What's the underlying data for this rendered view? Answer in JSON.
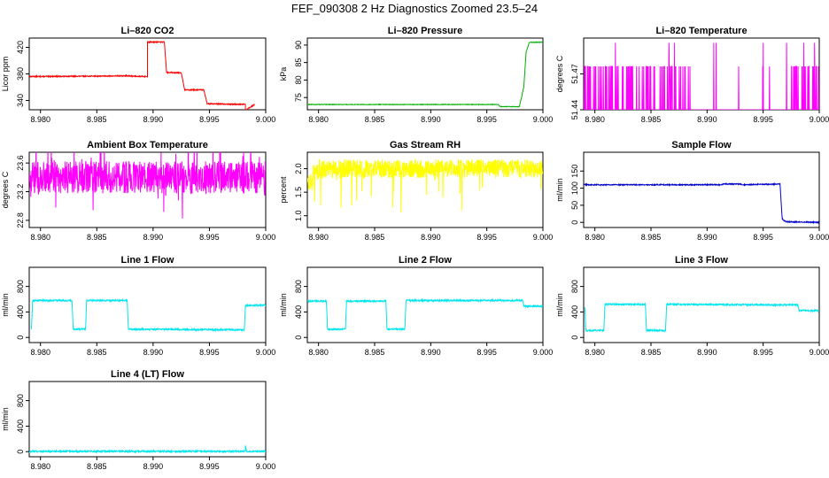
{
  "figure": {
    "title": "FEF_090308  2 Hz Diagnostics Zoomed 23.5–24"
  },
  "chart_data": [
    {
      "type": "line",
      "title": "Li–820 CO2",
      "ylabel": "Licor ppm",
      "color": "#ff0000",
      "xlim": [
        8.979,
        9.0
      ],
      "ylim": [
        326,
        434
      ],
      "xticks": [
        "8.980",
        "8.985",
        "8.990",
        "8.995",
        "9.000"
      ],
      "xtick_values": [
        8.98,
        8.985,
        8.99,
        8.995,
        9.0
      ],
      "yticks": [
        "340",
        "380",
        "420"
      ],
      "ytick_values": [
        340,
        380,
        420
      ],
      "series": [
        {
          "name": "CO2",
          "x": [
            8.979,
            8.9875,
            8.9895,
            8.9895,
            8.991,
            8.9912,
            8.9925,
            8.9928,
            8.9945,
            8.9948,
            8.9982,
            8.9982,
            8.999
          ],
          "y": [
            376,
            377,
            376,
            428,
            428,
            382,
            382,
            356,
            356,
            335,
            334,
            325,
            334
          ]
        }
      ]
    },
    {
      "type": "line",
      "title": "Li–820 Pressure",
      "ylabel": "kPa",
      "color": "#00b000",
      "xlim": [
        8.979,
        9.0
      ],
      "ylim": [
        71.5,
        92
      ],
      "xticks": [
        "8.980",
        "8.985",
        "8.990",
        "8.995",
        "9.000"
      ],
      "xtick_values": [
        8.98,
        8.985,
        8.99,
        8.995,
        9.0
      ],
      "yticks": [
        "75",
        "80",
        "85",
        "90"
      ],
      "ytick_values": [
        75,
        80,
        85,
        90
      ],
      "series": [
        {
          "name": "Pressure",
          "x": [
            8.979,
            8.996,
            8.9962,
            8.9979,
            8.9983,
            8.9985,
            8.9988,
            9.0
          ],
          "y": [
            73.0,
            73.0,
            72.4,
            72.4,
            78,
            88,
            90.8,
            90.8
          ]
        }
      ]
    },
    {
      "type": "line",
      "title": "Li–820 Temperature",
      "ylabel": "degrees C",
      "color": "#ff00ff",
      "xlim": [
        8.979,
        9.0
      ],
      "ylim": [
        51.44,
        51.5
      ],
      "xticks": [
        "8.980",
        "8.985",
        "8.990",
        "8.995",
        "9.000"
      ],
      "xtick_values": [
        8.98,
        8.985,
        8.99,
        8.995,
        9.0
      ],
      "yticks": [
        "51.44",
        "51.47"
      ],
      "ytick_values": [
        51.44,
        51.47
      ],
      "series": [
        {
          "name": "Temperature",
          "x": [
            8.979,
            9.0
          ],
          "y": [
            51.44,
            51.44
          ]
        }
      ]
    },
    {
      "type": "line",
      "title": "Ambient Box Temperature",
      "ylabel": "degrees C",
      "color": "#ff00ff",
      "xlim": [
        8.979,
        9.0
      ],
      "ylim": [
        22.7,
        23.75
      ],
      "xticks": [
        "8.980",
        "8.985",
        "8.990",
        "8.995",
        "9.000"
      ],
      "xtick_values": [
        8.98,
        8.985,
        8.99,
        8.995,
        9.0
      ],
      "yticks": [
        "22.8",
        "23.2",
        "23.6"
      ],
      "ytick_values": [
        22.8,
        23.2,
        23.6
      ],
      "series": [
        {
          "name": "Ambient",
          "x": [
            8.979,
            9.0
          ],
          "y": [
            23.4,
            23.4
          ]
        }
      ]
    },
    {
      "type": "line",
      "title": "Gas Stream RH",
      "ylabel": "percent",
      "color": "#ffff00",
      "xlim": [
        8.979,
        9.0
      ],
      "ylim": [
        0.75,
        2.35
      ],
      "xticks": [
        "8.980",
        "8.985",
        "8.990",
        "8.995",
        "9.000"
      ],
      "xtick_values": [
        8.98,
        8.985,
        8.99,
        8.995,
        9.0
      ],
      "yticks": [
        "1.0",
        "1.5",
        "2.0"
      ],
      "ytick_values": [
        1.0,
        1.5,
        2.0
      ],
      "series": [
        {
          "name": "RH",
          "x": [
            8.979,
            9.0
          ],
          "y": [
            2.0,
            2.0
          ]
        }
      ]
    },
    {
      "type": "line",
      "title": "Sample Flow",
      "ylabel": "ml/min",
      "color": "#0000cc",
      "xlim": [
        8.979,
        9.0
      ],
      "ylim": [
        -15,
        205
      ],
      "xticks": [
        "8.980",
        "8.985",
        "8.990",
        "8.995",
        "9.000"
      ],
      "xtick_values": [
        8.98,
        8.985,
        8.99,
        8.995,
        9.0
      ],
      "yticks": [
        "0",
        "50",
        "100",
        "150"
      ],
      "ytick_values": [
        0,
        50,
        100,
        150
      ],
      "series": [
        {
          "name": "Sample",
          "x": [
            8.979,
            8.9912,
            8.9914,
            8.993,
            8.9932,
            8.9965,
            8.9967,
            8.997,
            9.0
          ],
          "y": [
            110,
            110,
            112,
            112,
            110,
            112,
            10,
            2,
            0
          ]
        }
      ]
    },
    {
      "type": "line",
      "title": "Line 1 Flow",
      "ylabel": "ml/min",
      "color": "#00e5ee",
      "xlim": [
        8.979,
        9.0
      ],
      "ylim": [
        -80,
        1100
      ],
      "xticks": [
        "8.980",
        "8.985",
        "8.990",
        "8.995",
        "9.000"
      ],
      "xtick_values": [
        8.98,
        8.985,
        8.99,
        8.995,
        9.0
      ],
      "yticks": [
        "0",
        "400",
        "800"
      ],
      "ytick_values": [
        0,
        400,
        800
      ],
      "series": [
        {
          "name": "Line 1",
          "x": [
            8.9792,
            8.9793,
            8.9828,
            8.9829,
            8.984,
            8.9841,
            8.9877,
            8.9878,
            8.9981,
            8.9982,
            9.0
          ],
          "y": [
            130,
            580,
            580,
            130,
            130,
            580,
            580,
            130,
            120,
            500,
            510
          ]
        }
      ]
    },
    {
      "type": "line",
      "title": "Line 2 Flow",
      "ylabel": "ml/min",
      "color": "#00e5ee",
      "xlim": [
        8.979,
        9.0
      ],
      "ylim": [
        -80,
        1100
      ],
      "xticks": [
        "8.980",
        "8.985",
        "8.990",
        "8.995",
        "9.000"
      ],
      "xtick_values": [
        8.98,
        8.985,
        8.99,
        8.995,
        9.0
      ],
      "yticks": [
        "0",
        "400",
        "800"
      ],
      "ytick_values": [
        0,
        400,
        800
      ],
      "series": [
        {
          "name": "Line 2",
          "x": [
            8.979,
            8.9807,
            8.9808,
            8.9824,
            8.9825,
            8.986,
            8.9861,
            8.9877,
            8.9878,
            8.9982,
            8.9983,
            9.0
          ],
          "y": [
            570,
            570,
            130,
            130,
            570,
            570,
            130,
            130,
            580,
            580,
            490,
            490
          ]
        }
      ]
    },
    {
      "type": "line",
      "title": "Line 3 Flow",
      "ylabel": "ml/min",
      "color": "#00e5ee",
      "xlim": [
        8.979,
        9.0
      ],
      "ylim": [
        -80,
        1100
      ],
      "xticks": [
        "8.980",
        "8.985",
        "8.990",
        "8.995",
        "9.000"
      ],
      "xtick_values": [
        8.98,
        8.985,
        8.99,
        8.995,
        9.0
      ],
      "yticks": [
        "0",
        "400",
        "800"
      ],
      "ytick_values": [
        0,
        400,
        800
      ],
      "series": [
        {
          "name": "Line 3",
          "x": [
            8.9791,
            8.9792,
            8.9808,
            8.9809,
            8.9845,
            8.9846,
            8.9863,
            8.9864,
            8.9981,
            8.9982,
            9.0
          ],
          "y": [
            480,
            110,
            110,
            520,
            520,
            110,
            110,
            520,
            510,
            420,
            420
          ]
        }
      ]
    },
    {
      "type": "line",
      "title": "Line 4 (LT) Flow",
      "ylabel": "ml/min",
      "color": "#00e5ee",
      "xlim": [
        8.979,
        9.0
      ],
      "ylim": [
        -80,
        1100
      ],
      "xticks": [
        "8.980",
        "8.985",
        "8.990",
        "8.995",
        "9.000"
      ],
      "xtick_values": [
        8.98,
        8.985,
        8.99,
        8.995,
        9.0
      ],
      "yticks": [
        "0",
        "400",
        "800"
      ],
      "ytick_values": [
        0,
        400,
        800
      ],
      "series": [
        {
          "name": "Line 4",
          "x": [
            8.979,
            8.9982,
            8.9982,
            8.9983,
            9.0
          ],
          "y": [
            5,
            5,
            90,
            5,
            5
          ]
        }
      ]
    }
  ]
}
